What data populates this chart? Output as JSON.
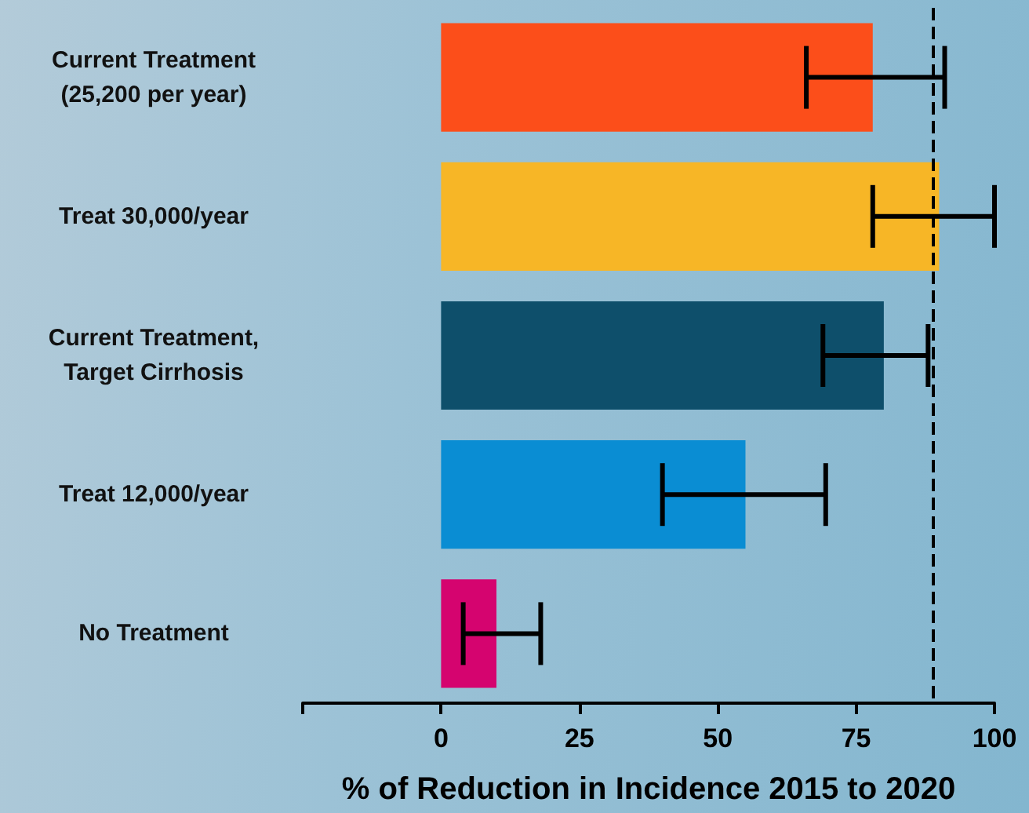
{
  "chart_data": {
    "type": "bar",
    "orientation": "horizontal",
    "categories": [
      "Current Treatment\n(25,200 per year)",
      "Treat 30,000/year",
      "Current Treatment,\nTarget Cirrhosis",
      "Treat 12,000/year",
      "No Treatment"
    ],
    "values": [
      78,
      90,
      80,
      55,
      10
    ],
    "colors": [
      "#fc4e1a",
      "#f7b626",
      "#0e4f6b",
      "#0a8dd3",
      "#d5046f"
    ],
    "errors": [
      [
        66,
        91
      ],
      [
        78,
        100
      ],
      [
        69,
        88
      ],
      [
        40,
        69.5
      ],
      [
        4,
        18
      ]
    ],
    "xlabel": "% of Reduction in Incidence 2015 to 2020",
    "xlim": [
      -25,
      100
    ],
    "xticks": [
      {
        "value": -25,
        "label": null
      },
      0,
      25,
      50,
      75,
      100
    ],
    "ref_lines": [
      {
        "axis": "x",
        "value": 89,
        "line_style": "dashed",
        "color": "#000000"
      }
    ]
  }
}
